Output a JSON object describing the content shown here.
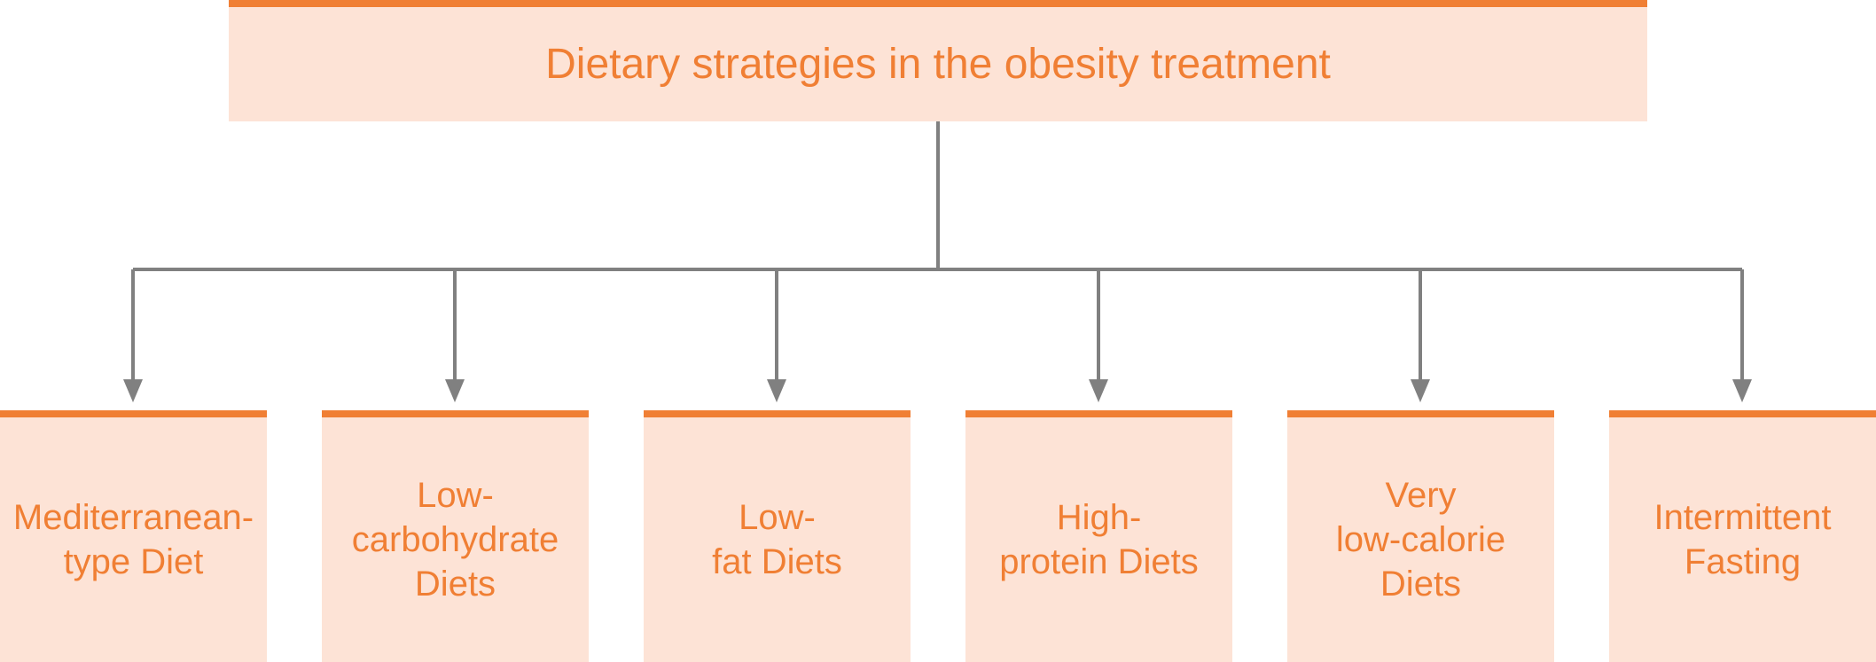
{
  "title": "Dietary strategies in the obesity treatment",
  "strategies": [
    {
      "label": "Mediterranean-\ntype Diet"
    },
    {
      "label": "Low-\ncarbohydrate\nDiets"
    },
    {
      "label": "Low-\nfat Diets"
    },
    {
      "label": "High-\nprotein Diets"
    },
    {
      "label": "Very\nlow-calorie\nDiets"
    },
    {
      "label": "Intermittent\nFasting"
    }
  ],
  "colors": {
    "accent": "#f07f34",
    "box_fill": "#fde3d6",
    "connector": "#808080"
  }
}
